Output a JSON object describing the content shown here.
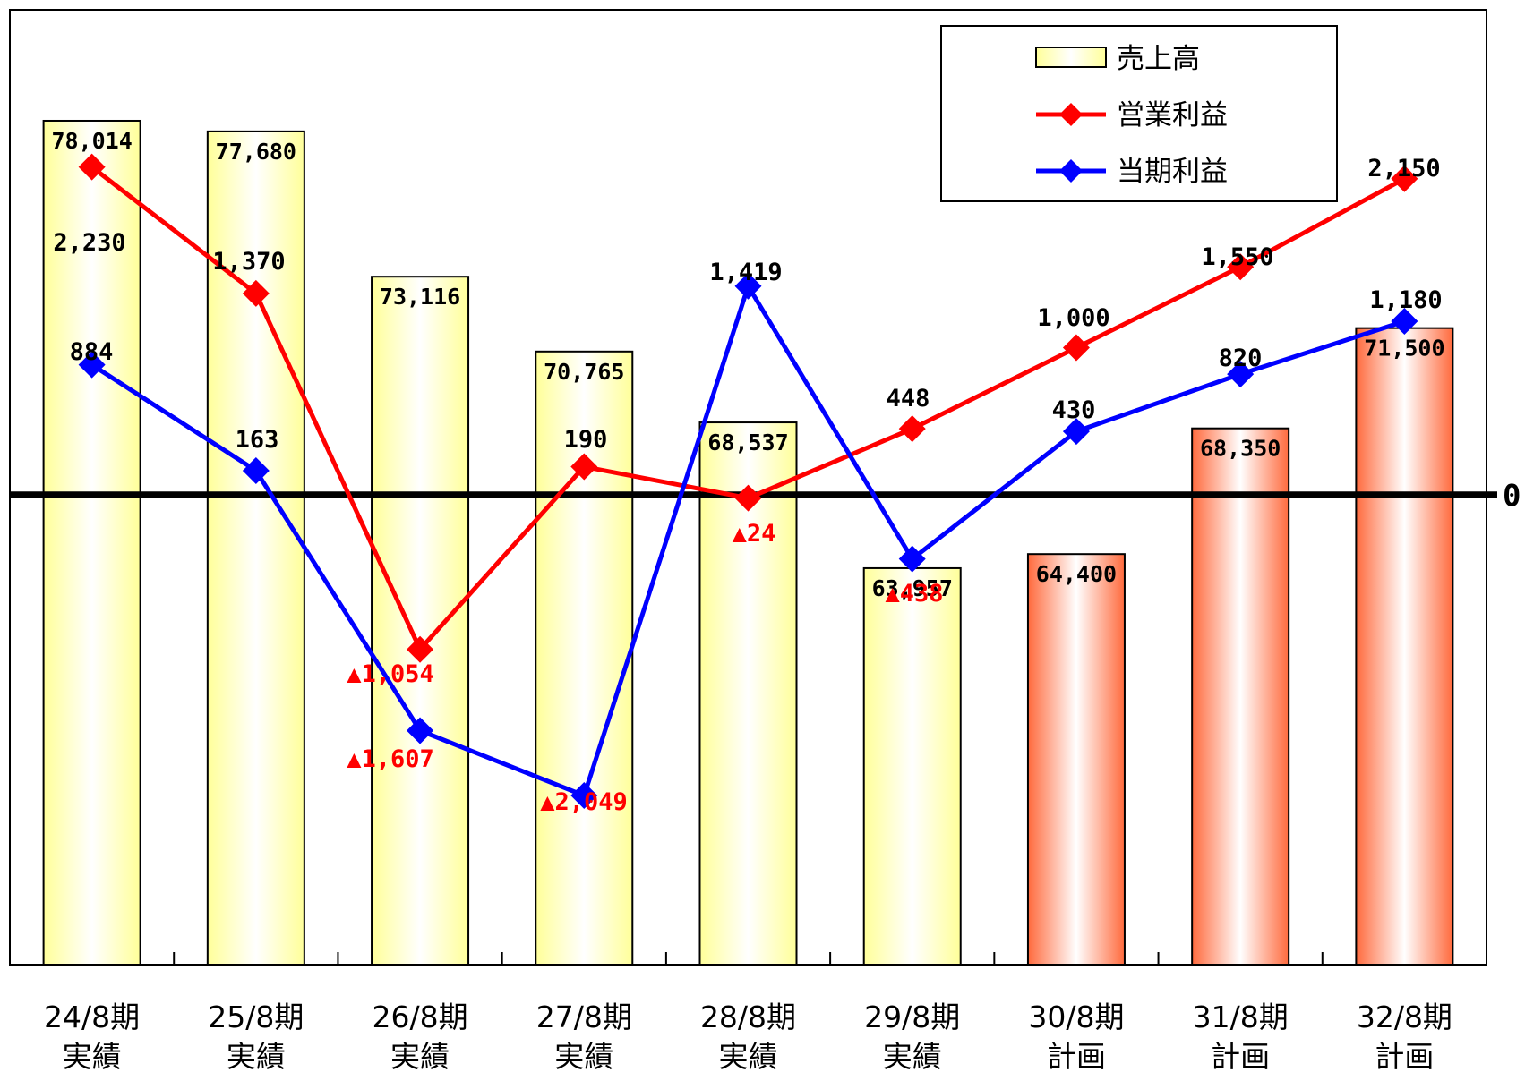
{
  "colors": {
    "op_profit": "#ff0000",
    "net_profit": "#0000ff",
    "negative_label": "#ff0000",
    "bar_actual": "#ffffb0",
    "bar_plan": "#ff7040",
    "axis": "#000000"
  },
  "chart_data": {
    "type": "bar",
    "categories": [
      [
        "24/8期",
        "実績"
      ],
      [
        "25/8期",
        "実績"
      ],
      [
        "26/8期",
        "実績"
      ],
      [
        "27/8期",
        "実績"
      ],
      [
        "28/8期",
        "実績"
      ],
      [
        "29/8期",
        "実績"
      ],
      [
        "30/8期",
        "計画"
      ],
      [
        "31/8期",
        "計画"
      ],
      [
        "32/8期",
        "計画"
      ]
    ],
    "zero_label": "0",
    "legend": {
      "placement": "top-right"
    },
    "series": [
      {
        "name": "売上高",
        "kind": "bar",
        "axis": "left",
        "values": [
          78014,
          77680,
          73116,
          70765,
          68537,
          63957,
          64400,
          68350,
          71500
        ],
        "labels": [
          "78,014",
          "77,680",
          "73,116",
          "70,765",
          "68,537",
          "63,957",
          "64,400",
          "68,350",
          "71,500"
        ],
        "style": [
          "actual",
          "actual",
          "actual",
          "actual",
          "actual",
          "actual",
          "plan",
          "plan",
          "plan"
        ],
        "ylim": [
          51500,
          81500
        ]
      },
      {
        "name": "営業利益",
        "kind": "line",
        "axis": "right",
        "values": [
          2230,
          1370,
          -1054,
          190,
          -24,
          448,
          1000,
          1550,
          2150
        ],
        "labels": [
          "2,230",
          "1,370",
          "▲1,054",
          "190",
          "▲24",
          "448",
          "1,000",
          "1,550",
          "2,150"
        ]
      },
      {
        "name": "当期利益",
        "kind": "line",
        "axis": "right",
        "values": [
          884,
          163,
          -1607,
          -2049,
          1419,
          -438,
          430,
          820,
          1180
        ],
        "labels": [
          "884",
          "163",
          "▲1,607",
          "▲2,049",
          "1,419",
          "▲438",
          "430",
          "820",
          "1,180"
        ]
      }
    ],
    "y_right_lim": [
      -3200,
      3300
    ]
  }
}
